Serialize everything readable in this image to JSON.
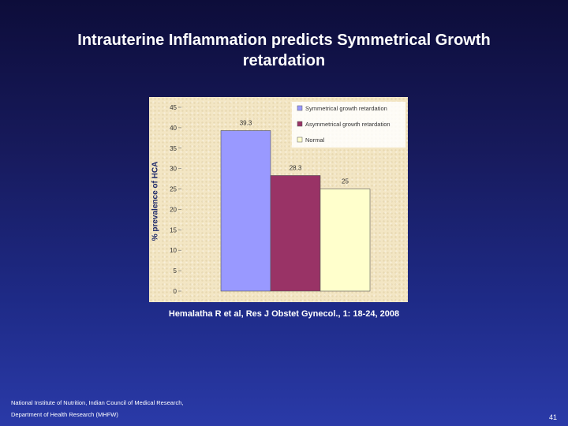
{
  "slide": {
    "title": "Intrauterine Inflammation predicts Symmetrical Growth retardation",
    "citation": "Hemalatha R et al, Res J Obstet Gynecol., 1: 18-24, 2008",
    "footer_line1": "National Institute of Nutrition, Indian Council of Medical Research,",
    "footer_line2": "Department of Health Research (MHFW)",
    "page_number": "41"
  },
  "chart_data": {
    "type": "bar",
    "title": "",
    "xlabel": "",
    "ylabel": "% prevalence of HCA",
    "ylim": [
      0,
      45
    ],
    "yticks": [
      0,
      5,
      10,
      15,
      20,
      25,
      30,
      35,
      40,
      45
    ],
    "grid": false,
    "legend_position": "top-right",
    "series": [
      {
        "name": "Symmetrical growth retardation",
        "value": 39.3,
        "label": "39.3",
        "color": "#9999ff"
      },
      {
        "name": "Asymmetrical growth retardation",
        "value": 28.3,
        "label": "28.3",
        "color": "#993366"
      },
      {
        "name": "Normal",
        "value": 25,
        "label": "25",
        "color": "#ffffcc"
      }
    ]
  }
}
